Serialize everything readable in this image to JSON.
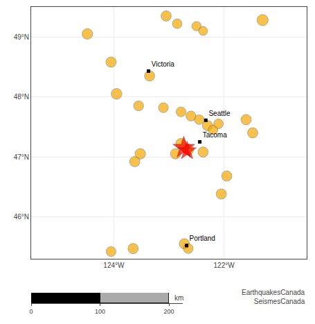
{
  "chart_data": [
    {
      "type": "scatter",
      "xlim": [
        -125.5,
        -120.5
      ],
      "ylim": [
        45.3,
        49.5
      ],
      "xticks": [
        {
          "value": -124,
          "label": "124°W"
        },
        {
          "value": -122,
          "label": "122°W"
        }
      ],
      "yticks": [
        {
          "value": 46,
          "label": "46°N"
        },
        {
          "value": 47,
          "label": "47°N"
        },
        {
          "value": 48,
          "label": "48°N"
        },
        {
          "value": 49,
          "label": "49°N"
        }
      ],
      "grid": true,
      "series": [
        {
          "marker": "circle",
          "color": "#f5a800",
          "x": [
            -123.05,
            -122.85,
            -122.5,
            -122.38,
            -124.48,
            -121.3,
            -124.05,
            -123.35,
            -123.95,
            -123.55,
            -123.1,
            -122.78,
            -122.6,
            -122.45,
            -122.3,
            -122.2,
            -122.1,
            -121.6,
            -121.48,
            -122.78,
            -122.65,
            -122.88,
            -123.52,
            -123.62,
            -122.38,
            -121.95,
            -122.05,
            -122.72,
            -122.65,
            -123.65,
            -124.05
          ],
          "y": [
            49.35,
            49.22,
            49.18,
            49.1,
            49.05,
            49.28,
            48.58,
            48.35,
            48.05,
            47.85,
            47.82,
            47.75,
            47.68,
            47.62,
            47.52,
            47.45,
            47.55,
            47.62,
            47.4,
            47.22,
            47.12,
            47.05,
            47.05,
            46.92,
            47.08,
            46.68,
            46.38,
            45.55,
            45.47,
            45.47,
            45.42
          ],
          "size": [
            55,
            48,
            45,
            42,
            58,
            65,
            56,
            55,
            60,
            52,
            50,
            50,
            52,
            48,
            55,
            48,
            48,
            55,
            55,
            58,
            62,
            55,
            58,
            55,
            55,
            55,
            55,
            55,
            50,
            55,
            50
          ]
        },
        {
          "marker": "star",
          "color": "red",
          "x": [
            -122.73,
            -122.67
          ],
          "y": [
            47.15,
            47.1
          ],
          "size": [
            100,
            70
          ]
        },
        {
          "marker": "square",
          "color": "black",
          "x": [
            -123.37,
            -122.33,
            -122.44,
            -122.68
          ],
          "y": [
            48.43,
            47.61,
            47.25,
            45.52
          ],
          "labels": [
            "Victoria",
            "Seattle",
            "Tacoma",
            "Portland"
          ]
        }
      ],
      "annotations": [
        {
          "text": "EarthquakesCanada\nSeismesCanada"
        }
      ]
    },
    {
      "type": "bar",
      "orientation": "horizontal",
      "stacked": true,
      "categories": [
        null
      ],
      "xlim": [
        0,
        220
      ],
      "xticks": [
        0,
        100,
        200
      ],
      "xlabel": "km",
      "tick_labels": "x",
      "series": [
        {
          "color": "black",
          "values": [
            100
          ]
        },
        {
          "color": "#aaaaaa",
          "values": [
            100
          ]
        }
      ]
    }
  ]
}
